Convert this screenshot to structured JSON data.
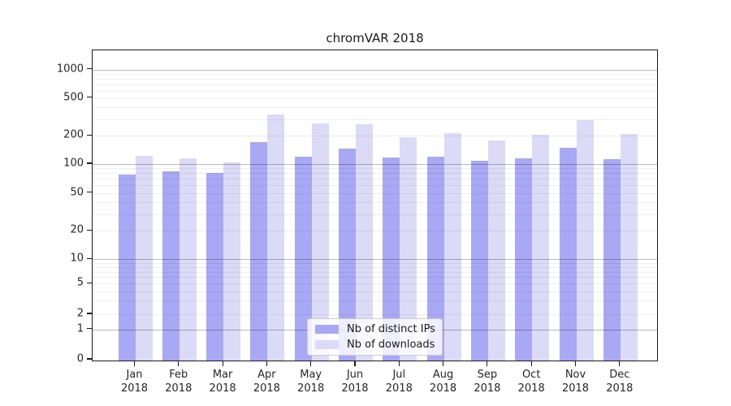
{
  "title": "chromVAR 2018",
  "colors": {
    "distinct_ips_bar": "#a8a8f5",
    "downloads_bar": "#dbdbf8",
    "axis_spine": "#1a1a1a",
    "major_gridline": "#b9b9b9",
    "minor_gridline": "#ededed"
  },
  "legend": {
    "items": [
      {
        "label": "Nb of distinct IPs",
        "color": "#a8a8f5"
      },
      {
        "label": "Nb of downloads",
        "color": "#dbdbf8"
      }
    ]
  },
  "chart_data": {
    "type": "bar",
    "title": "chromVAR 2018",
    "xlabel": "",
    "ylabel": "",
    "categories": [
      "Jan 2018",
      "Feb 2018",
      "Mar 2018",
      "Apr 2018",
      "May 2018",
      "Jun 2018",
      "Jul 2018",
      "Aug 2018",
      "Sep 2018",
      "Oct 2018",
      "Nov 2018",
      "Dec 2018"
    ],
    "series": [
      {
        "name": "Nb of distinct IPs",
        "color": "#a8a8f5",
        "values": [
          80,
          85,
          82,
          175,
          123,
          150,
          120,
          121,
          111,
          117,
          153,
          115
        ]
      },
      {
        "name": "Nb of downloads",
        "color": "#dbdbf8",
        "values": [
          124,
          117,
          106,
          345,
          278,
          273,
          198,
          218,
          182,
          210,
          300,
          212
        ]
      }
    ],
    "yscale": "symlog",
    "y_ticks": [
      0,
      1,
      2,
      5,
      10,
      20,
      50,
      100,
      200,
      500,
      1000
    ],
    "ylim": [
      0,
      1400
    ],
    "grid": true,
    "legend_position": "lower center"
  }
}
